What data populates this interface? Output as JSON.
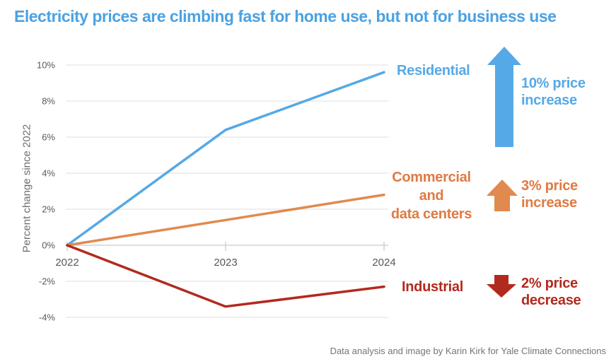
{
  "title": "Electricity prices are climbing fast for home use, but not for business use",
  "attribution": "Data analysis and image by Karin Kirk for Yale Climate Connections",
  "colors": {
    "title": "#4ba2e3",
    "residential": "#55a9e6",
    "commercial_text": "#e07a42",
    "commercial_arrow": "#e08a4f",
    "industrial": "#b22a1e",
    "axis_text": "#58595b",
    "gridline": "#e3e3e3",
    "zero_line": "#c9c9c9",
    "tick": "#c9c9c9",
    "attribution_text": "#757575"
  },
  "chart_data": {
    "type": "line",
    "x": [
      "2022",
      "2023",
      "2024"
    ],
    "series": [
      {
        "name": "Residential",
        "values": [
          0,
          6.4,
          9.6
        ],
        "color": "#55a9e6"
      },
      {
        "name": "Commercial and data centers",
        "values": [
          0,
          1.4,
          2.8
        ],
        "color": "#e08a4f"
      },
      {
        "name": "Industrial",
        "values": [
          0,
          -3.4,
          -2.3
        ],
        "color": "#b22a1e"
      }
    ],
    "ylabel": "Percent change since 2022",
    "xlabel": "",
    "yticks": [
      10,
      8,
      6,
      4,
      2,
      0,
      -2,
      -4
    ],
    "ytick_labels": [
      "10%",
      "8%",
      "6%",
      "4%",
      "2%",
      "0%",
      "-2%",
      "-4%"
    ],
    "xtick_labels": [
      "2022",
      "2023",
      "2024"
    ],
    "ylim": [
      -4,
      10
    ],
    "grid": true,
    "legend_position": "labels-right-of-lines"
  },
  "series_labels": {
    "residential": "Residential",
    "commercial": "Commercial\nand\ndata centers",
    "industrial": "Industrial"
  },
  "annotations": {
    "residential": "10% price\nincrease",
    "commercial": "3% price\nincrease",
    "industrial": "2% price\ndecrease"
  }
}
